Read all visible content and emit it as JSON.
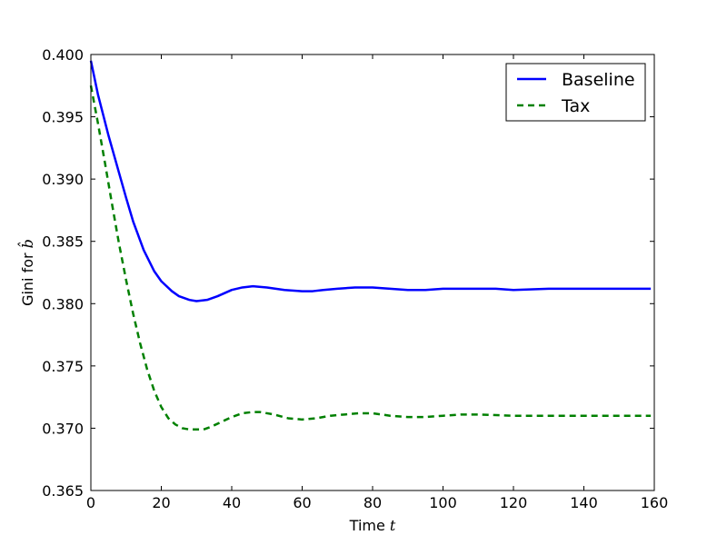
{
  "chart_data": {
    "type": "line",
    "xlabel": "Time t",
    "ylabel": "Gini for b̂",
    "xlim": [
      0,
      160
    ],
    "ylim": [
      0.365,
      0.4
    ],
    "x_ticks": [
      "0",
      "20",
      "40",
      "60",
      "80",
      "100",
      "120",
      "140",
      "160"
    ],
    "y_ticks": [
      "0.365",
      "0.370",
      "0.375",
      "0.380",
      "0.385",
      "0.390",
      "0.395",
      "0.400"
    ],
    "grid": false,
    "legend_position": "top-right",
    "series": [
      {
        "name": "Baseline",
        "color": "#0000ff",
        "style": "solid",
        "x": [
          0,
          2,
          5,
          8,
          10,
          12,
          15,
          18,
          20,
          23,
          25,
          28,
          30,
          33,
          36,
          40,
          43,
          46,
          50,
          55,
          60,
          63,
          66,
          70,
          75,
          80,
          85,
          90,
          95,
          100,
          105,
          110,
          115,
          120,
          130,
          140,
          150,
          159
        ],
        "y": [
          0.3995,
          0.3968,
          0.3935,
          0.3905,
          0.3885,
          0.3866,
          0.3843,
          0.3826,
          0.3818,
          0.381,
          0.3806,
          0.3803,
          0.3802,
          0.3803,
          0.3806,
          0.3811,
          0.3813,
          0.3814,
          0.3813,
          0.3811,
          0.381,
          0.381,
          0.3811,
          0.3812,
          0.3813,
          0.3813,
          0.3812,
          0.3811,
          0.3811,
          0.3812,
          0.3812,
          0.3812,
          0.3812,
          0.3811,
          0.3812,
          0.3812,
          0.3812,
          0.3812
        ]
      },
      {
        "name": "Tax",
        "color": "#008000",
        "style": "dashed",
        "x": [
          0,
          2,
          4,
          6,
          8,
          10,
          12,
          14,
          16,
          18,
          20,
          22,
          24,
          26,
          28,
          30,
          32,
          34,
          37,
          40,
          43,
          46,
          48,
          52,
          56,
          60,
          64,
          68,
          72,
          76,
          80,
          85,
          90,
          95,
          100,
          105,
          110,
          120,
          130,
          140,
          150,
          159
        ],
        "y": [
          0.3975,
          0.3945,
          0.3913,
          0.388,
          0.3848,
          0.3819,
          0.3792,
          0.3768,
          0.3747,
          0.373,
          0.3717,
          0.3708,
          0.3703,
          0.37,
          0.3699,
          0.3699,
          0.3699,
          0.3701,
          0.3705,
          0.3709,
          0.3712,
          0.3713,
          0.3713,
          0.3711,
          0.3708,
          0.3707,
          0.3708,
          0.371,
          0.3711,
          0.3712,
          0.3712,
          0.371,
          0.3709,
          0.3709,
          0.371,
          0.3711,
          0.3711,
          0.371,
          0.371,
          0.371,
          0.371,
          0.371
        ]
      }
    ]
  }
}
